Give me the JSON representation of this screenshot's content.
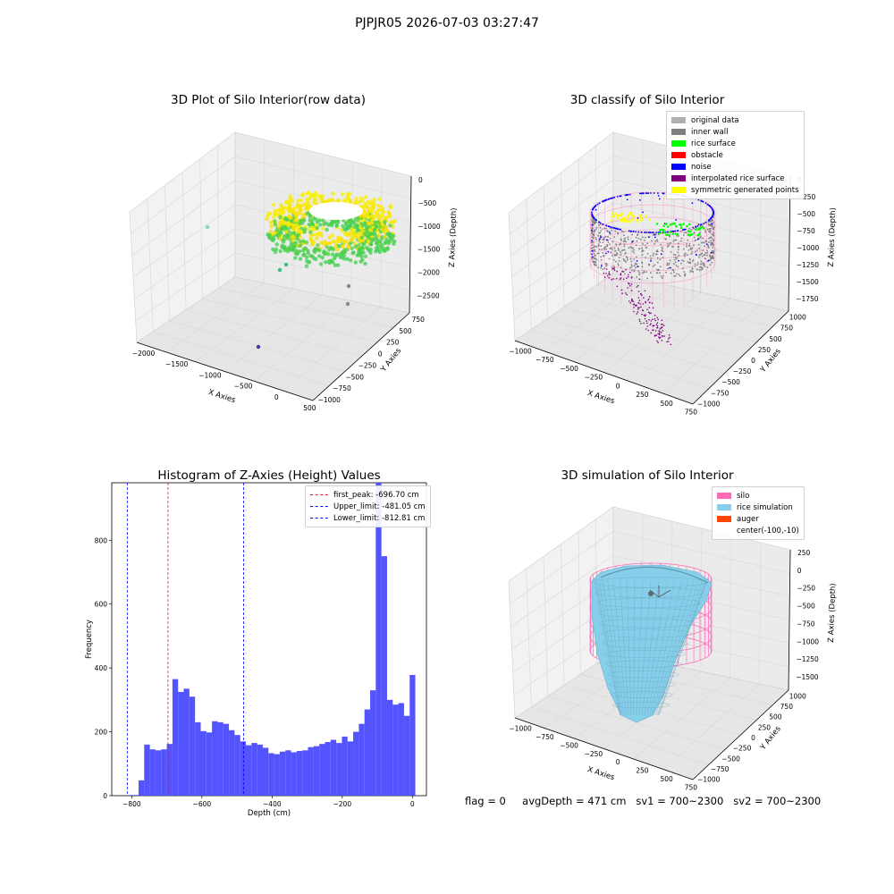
{
  "suptitle": "PJPJR05 2026-07-03 03:27:47",
  "footer": {
    "flag": "flag = 0",
    "avg_depth": "avgDepth = 471 cm",
    "sv1": "sv1 = 700~2300",
    "sv2": "sv2 = 700~2300"
  },
  "colors": {
    "pane": "#f2f2f2",
    "grid": "#d8d8d8",
    "hist_bar": "#4b4bff",
    "peak_line": "#e31a1c",
    "limit_line": "#0000ff",
    "silo": "#ff69b4",
    "rice_sim": "#87ceeb",
    "auger": "#ff4500",
    "original": "#b0b0b0",
    "inner_wall": "#808080",
    "rice_surface": "#00ff00",
    "obstacle": "#ff0000",
    "noise": "#0000ff",
    "interp": "#800080",
    "sym": "#ffff00"
  },
  "chart_data": [
    {
      "type": "scatter",
      "title": "3D Plot of Silo Interior(row data)",
      "xlabel": "X Axies",
      "ylabel": "Y Axies",
      "zlabel": "Z Axies (Depth)",
      "x_ticks": [
        "−2000",
        "−1500",
        "−1000",
        "−500",
        "0",
        "500"
      ],
      "y_ticks": [
        "−1000",
        "−750",
        "−500",
        "−250",
        "0",
        "250",
        "500",
        "750"
      ],
      "z_ticks": [
        "0",
        "−500",
        "−1000",
        "−1500",
        "−2000",
        "−2500"
      ],
      "outlier_points": [
        {
          "x": -2000,
          "y": 400,
          "z": -800
        },
        {
          "x": 400,
          "y": -500,
          "z": -2300
        },
        {
          "x": 450,
          "y": -600,
          "z": -2450
        },
        {
          "x": -500,
          "y": -900,
          "z": -2500
        }
      ]
    },
    {
      "type": "scatter",
      "title": "3D classify of Silo Interior",
      "xlabel": "X Axies",
      "ylabel": "Y Axies",
      "zlabel": "Z Axies (Depth)",
      "x_ticks": [
        "−1000",
        "−750",
        "−500",
        "−250",
        "0",
        "250",
        "500",
        "750"
      ],
      "y_ticks": [
        "−1000",
        "−750",
        "−500",
        "−250",
        "0",
        "250",
        "500",
        "750",
        "1000"
      ],
      "z_ticks": [
        "0",
        "−250",
        "−500",
        "−750",
        "−1000",
        "−1250",
        "−1500",
        "−1750"
      ],
      "legend": [
        {
          "label": "original data",
          "color": "#b0b0b0"
        },
        {
          "label": "inner wall",
          "color": "#808080"
        },
        {
          "label": "rice surface",
          "color": "#00ff00"
        },
        {
          "label": "obstacle",
          "color": "#ff0000"
        },
        {
          "label": "noise",
          "color": "#0000ff"
        },
        {
          "label": "interpolated rice surface",
          "color": "#800080"
        },
        {
          "label": "symmetric generated points",
          "color": "#ffff00"
        }
      ]
    },
    {
      "type": "bar",
      "title": "Histogram of Z-Axies (Height) Values",
      "xlabel": "Depth (cm)",
      "ylabel": "Frequency",
      "xlim": [
        -857,
        40
      ],
      "ylim": [
        0,
        980
      ],
      "x_ticks": [
        -800,
        -600,
        -400,
        -200,
        0
      ],
      "x_tick_labels": [
        "−800",
        "−600",
        "−400",
        "−200",
        "0"
      ],
      "y_ticks": [
        0,
        200,
        400,
        600,
        800
      ],
      "bin_start": -812.81,
      "bin_width": 16.1,
      "values": [
        2,
        2,
        48,
        160,
        145,
        142,
        145,
        162,
        365,
        325,
        335,
        310,
        230,
        202,
        198,
        233,
        230,
        225,
        205,
        190,
        170,
        158,
        165,
        160,
        150,
        133,
        130,
        138,
        142,
        136,
        140,
        142,
        152,
        155,
        162,
        168,
        175,
        165,
        185,
        170,
        200,
        225,
        270,
        330,
        980,
        750,
        300,
        285,
        290,
        250,
        378
      ],
      "vlines": [
        {
          "label": "first_peak: -696.70 cm",
          "x": -696.7,
          "color": "#e31a1c"
        },
        {
          "label": "Upper_limit: -481.05 cm",
          "x": -481.05,
          "color": "#0000ff"
        },
        {
          "label": "Lower_limit: -812.81 cm",
          "x": -812.81,
          "color": "#0000ff"
        }
      ]
    },
    {
      "type": "area",
      "title": "3D simulation of Silo Interior",
      "xlabel": "X Axies",
      "ylabel": "Y Axies",
      "zlabel": "Z Axies (Depth)",
      "x_ticks": [
        "−1000",
        "−750",
        "−500",
        "−250",
        "0",
        "250",
        "500",
        "750"
      ],
      "y_ticks": [
        "−1000",
        "−750",
        "−500",
        "−250",
        "0",
        "250",
        "500",
        "750",
        "1000"
      ],
      "z_ticks": [
        "250",
        "0",
        "−250",
        "−500",
        "−750",
        "−1000",
        "−1250",
        "−1500"
      ],
      "legend": [
        {
          "label": "silo",
          "color": "#ff69b4"
        },
        {
          "label": "rice simulation",
          "color": "#87ceeb"
        },
        {
          "label": "auger",
          "color": "#ff4500"
        },
        {
          "label": "center(-100,-10)",
          "color": ""
        }
      ]
    }
  ]
}
